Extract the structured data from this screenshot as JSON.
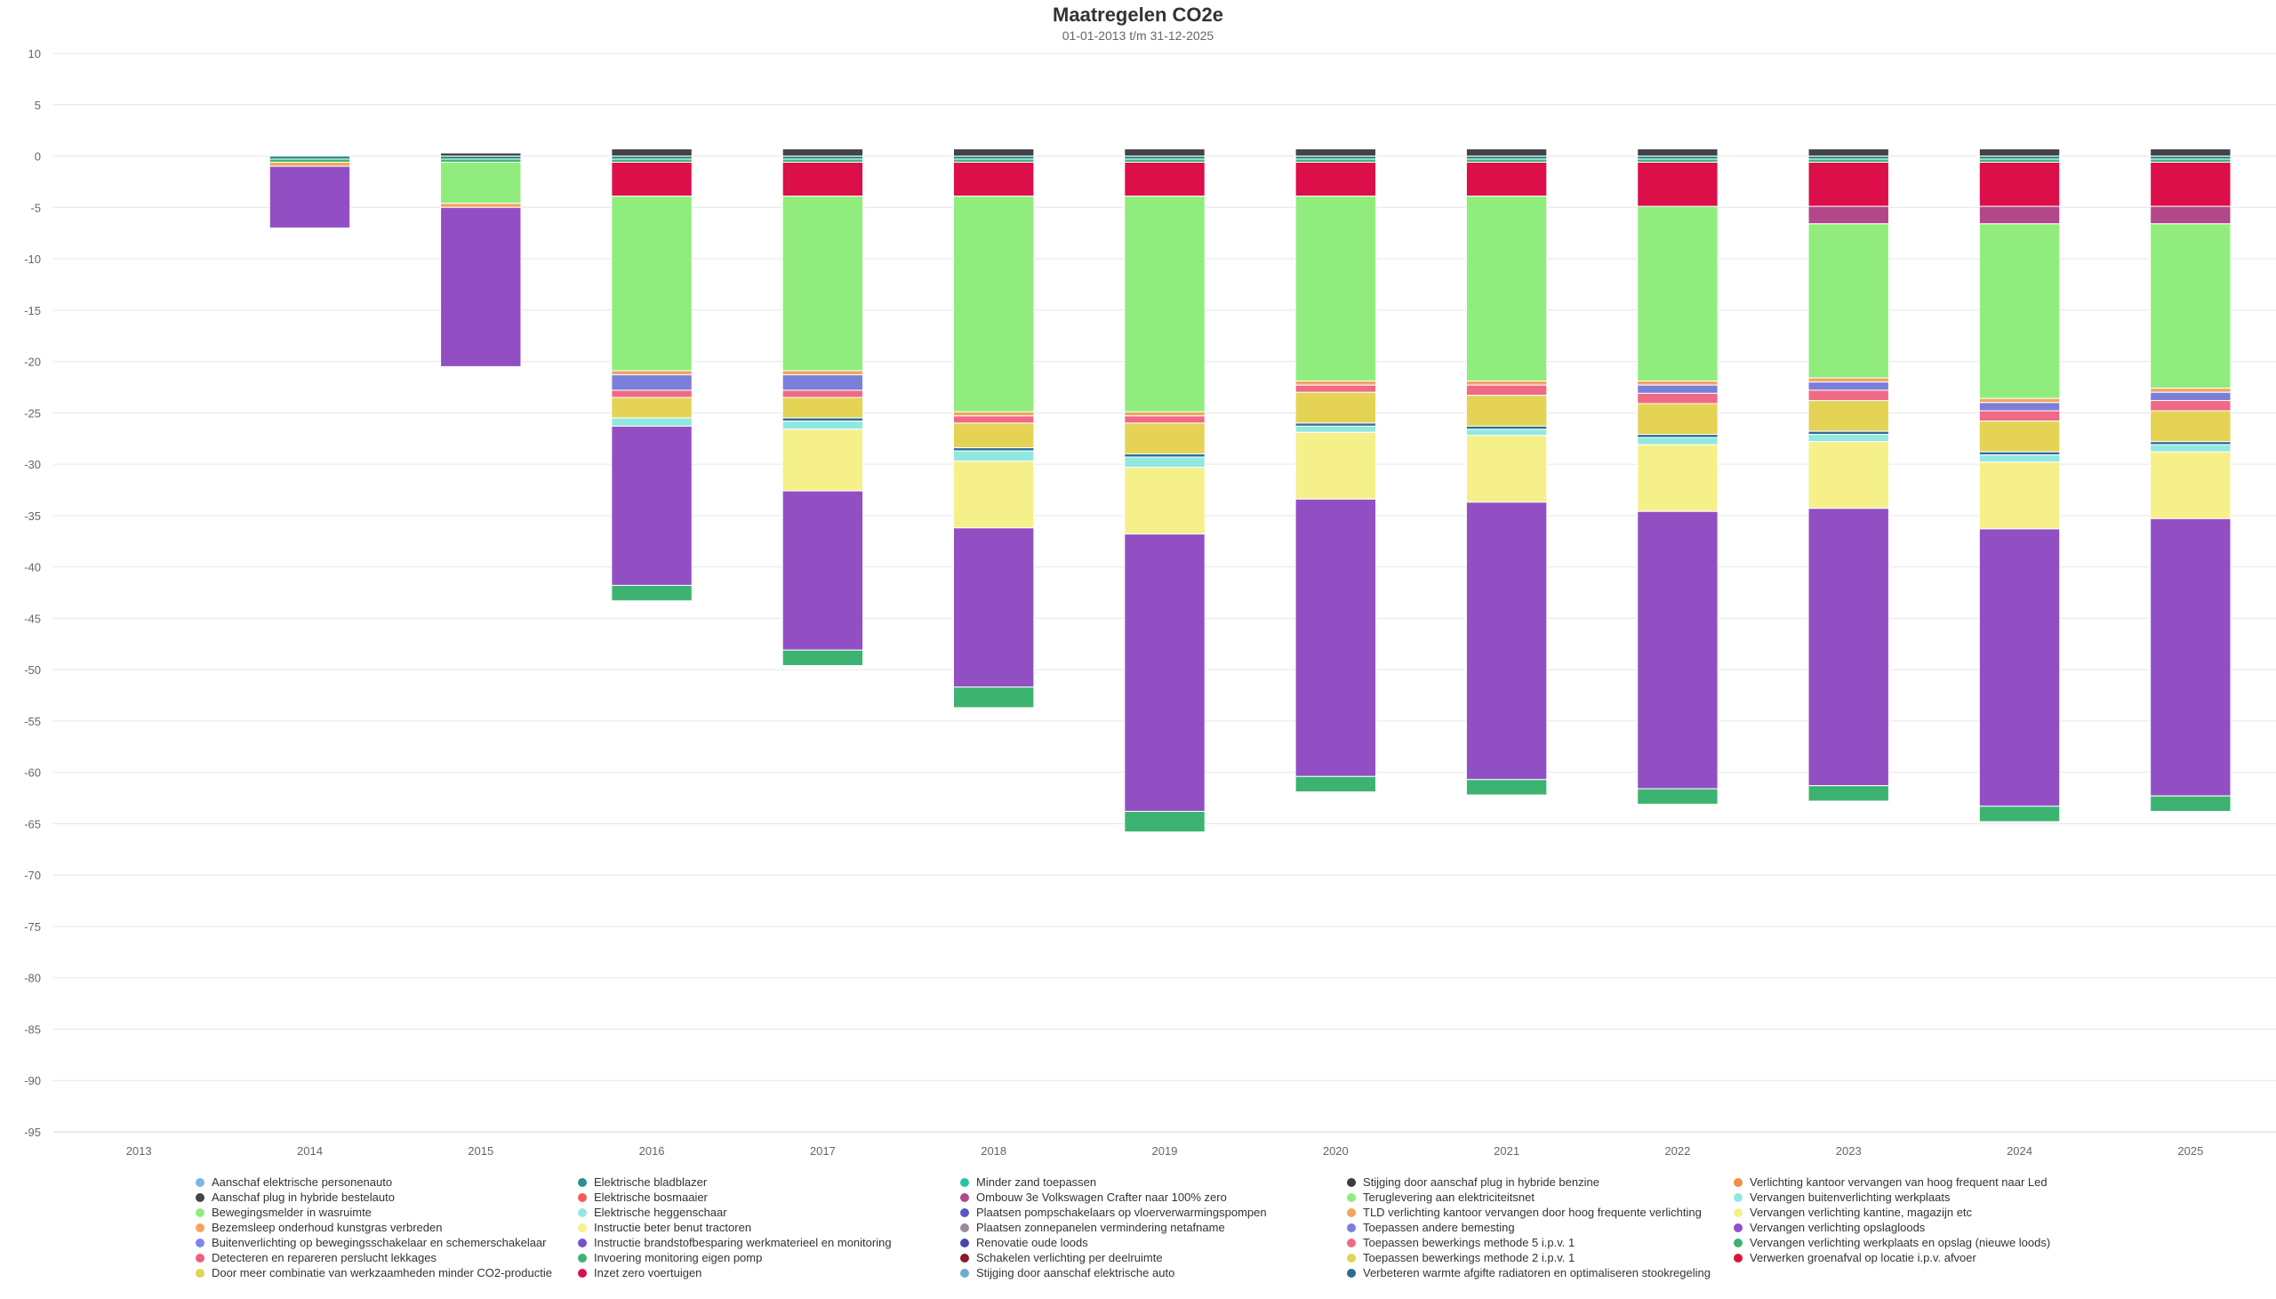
{
  "chart_data": {
    "type": "bar",
    "stacked": true,
    "title": "Maatregelen CO2e",
    "subtitle": "01-01-2013 t/m 31-12-2025",
    "ylim": [
      -95,
      10
    ],
    "yticks": [
      10,
      5,
      0,
      -5,
      -10,
      -15,
      -20,
      -25,
      -30,
      -35,
      -40,
      -45,
      -50,
      -55,
      -60,
      -65,
      -70,
      -75,
      -80,
      -85,
      -90,
      -95
    ],
    "categories": [
      "2013",
      "2014",
      "2015",
      "2016",
      "2017",
      "2018",
      "2019",
      "2020",
      "2021",
      "2022",
      "2023",
      "2024",
      "2025"
    ],
    "grid": true,
    "legend_position": "bottom",
    "series": [
      {
        "name": "Aanschaf elektrische personenauto",
        "color": "#7cb5ec",
        "values": [
          0,
          0,
          0,
          0,
          0,
          0,
          0,
          0,
          0,
          0,
          0,
          0,
          0
        ]
      },
      {
        "name": "Aanschaf plug in hybride bestelauto",
        "color": "#434348",
        "values": [
          0,
          0,
          0.3,
          0.7,
          0.7,
          0.7,
          0.7,
          0.7,
          0.7,
          0.7,
          0.7,
          0.7,
          0.7
        ]
      },
      {
        "name": "Bewegingsmelder in wasruimte",
        "color": "#90ed7d",
        "values": [
          0,
          0,
          0,
          0,
          0,
          0,
          0,
          0,
          0,
          0,
          0,
          0,
          0
        ]
      },
      {
        "name": "Bezemsleep onderhoud kunstgras verbreden",
        "color": "#f7a35c",
        "values": [
          0,
          0,
          0,
          0,
          0,
          0,
          0,
          0,
          0,
          0,
          0,
          0,
          0
        ]
      },
      {
        "name": "Buitenverlichting op bewegingsschakelaar en schemerschakelaar",
        "color": "#8085e9",
        "values": [
          0,
          0,
          0,
          0,
          0,
          0,
          0,
          0,
          0,
          0,
          0,
          0,
          0
        ]
      },
      {
        "name": "Detecteren en repareren perslucht lekkages",
        "color": "#f15c80",
        "values": [
          0,
          0,
          0,
          0,
          0,
          0,
          0,
          0,
          0,
          0,
          0,
          0,
          0
        ]
      },
      {
        "name": "Door meer combinatie van werkzaamheden minder CO2-productie",
        "color": "#e4d354",
        "values": [
          0,
          0,
          0,
          0,
          0,
          0,
          0,
          0,
          0,
          0,
          0,
          0,
          0
        ]
      },
      {
        "name": "Elektrische bladblazer",
        "color": "#2b908f",
        "values": [
          0,
          -0.3,
          -0.3,
          -0.3,
          -0.3,
          -0.3,
          -0.3,
          -0.3,
          -0.3,
          -0.3,
          -0.3,
          -0.3,
          -0.3
        ]
      },
      {
        "name": "Elektrische bosmaaier",
        "color": "#f45b5b",
        "values": [
          0,
          0,
          0,
          0,
          0,
          0,
          0,
          0,
          0,
          0,
          0,
          0,
          0
        ]
      },
      {
        "name": "Elektrische heggenschaar",
        "color": "#91e8e1",
        "values": [
          0,
          0,
          0,
          0,
          0,
          0,
          0,
          0,
          0,
          0,
          0,
          0,
          0
        ]
      },
      {
        "name": "Instructie beter benut tractoren",
        "color": "#f7f08d",
        "values": [
          0,
          0,
          0,
          0,
          0,
          0,
          0,
          0,
          0,
          0,
          0,
          0,
          0
        ]
      },
      {
        "name": "Instructie brandstofbesparing werkmaterieel en monitoring",
        "color": "#7a4fc9",
        "values": [
          0,
          0,
          0,
          0,
          0,
          0,
          0,
          0,
          0,
          0,
          0,
          0,
          0
        ]
      },
      {
        "name": "Invoering monitoring eigen pomp",
        "color": "#3cb371",
        "values": [
          0,
          -0.3,
          -0.3,
          -0.3,
          -0.3,
          -0.3,
          -0.3,
          -0.3,
          -0.3,
          -0.3,
          -0.3,
          -0.3,
          -0.3
        ]
      },
      {
        "name": "Inzet zero voertuigen",
        "color": "#dc0f4b",
        "values": [
          0,
          0,
          0,
          -3.3,
          -3.3,
          -3.3,
          -3.3,
          -3.3,
          -3.3,
          -4.3,
          -4.3,
          -4.3,
          -4.3
        ]
      },
      {
        "name": "Minder zand toepassen",
        "color": "#2fbfa5",
        "values": [
          0,
          0,
          0,
          0,
          0,
          0,
          0,
          0,
          0,
          0,
          0,
          0,
          0
        ]
      },
      {
        "name": "Ombouw 3e Volkswagen Crafter naar 100% zero",
        "color": "#b2478a",
        "values": [
          0,
          0,
          0,
          0,
          0,
          0,
          0,
          0,
          0,
          0,
          -1.7,
          -1.7,
          -1.7
        ]
      },
      {
        "name": "Plaatsen pompschakelaars op vloerverwarmingspompen",
        "color": "#5a55c8",
        "values": [
          0,
          0,
          0,
          0,
          0,
          0,
          0,
          0,
          0,
          0,
          0,
          0,
          0
        ]
      },
      {
        "name": "Plaatsen zonnepanelen vermindering netafname",
        "color": "#9a8a98",
        "values": [
          0,
          0,
          0,
          0,
          0,
          0,
          0,
          0,
          0,
          0,
          0,
          0,
          0
        ]
      },
      {
        "name": "Renovatie oude loods",
        "color": "#4845b0",
        "values": [
          0,
          0,
          0,
          0,
          0,
          0,
          0,
          0,
          0,
          0,
          0,
          0,
          0
        ]
      },
      {
        "name": "Schakelen verlichting per deelruimte",
        "color": "#8b1a2b",
        "values": [
          0,
          0,
          0,
          0,
          0,
          0,
          0,
          0,
          0,
          0,
          0,
          0,
          0
        ]
      },
      {
        "name": "Stijging door aanschaf elektrische auto",
        "color": "#6aaed6",
        "values": [
          0,
          0,
          0,
          0,
          0,
          0,
          0,
          0,
          0,
          0,
          0,
          0,
          0
        ]
      },
      {
        "name": "Stijging door aanschaf plug in hybride benzine",
        "color": "#3d3d40",
        "values": [
          0,
          0,
          0,
          0,
          0,
          0,
          0,
          0,
          0,
          0,
          0,
          0,
          0
        ]
      },
      {
        "name": "Teruglevering aan elektriciteitsnet",
        "color": "#90ed7d",
        "values": [
          0,
          0,
          -4,
          -17,
          -17,
          -21,
          -21,
          -18,
          -18,
          -17,
          -15,
          -17,
          -16
        ]
      },
      {
        "name": "TLD verlichting kantoor vervangen door hoog frequente verlichting",
        "color": "#f4a460",
        "values": [
          0,
          -0.4,
          -0.4,
          -0.4,
          -0.4,
          -0.4,
          -0.4,
          -0.4,
          -0.4,
          -0.4,
          -0.4,
          -0.4,
          -0.4
        ]
      },
      {
        "name": "Toepassen andere bemesting",
        "color": "#7b7fd9",
        "values": [
          0,
          0,
          0,
          -1.5,
          -1.5,
          0,
          0,
          0,
          0,
          -0.8,
          -0.8,
          -0.8,
          -0.8
        ]
      },
      {
        "name": "Toepassen bewerkings methode 5 i.p.v. 1",
        "color": "#f06a85",
        "values": [
          0,
          0,
          0,
          -0.7,
          -0.7,
          -0.7,
          -0.7,
          -0.7,
          -1.0,
          -1.0,
          -1.0,
          -1.0,
          -1.0
        ]
      },
      {
        "name": "Toepassen bewerkings methode 2 i.p.v. 1",
        "color": "#e4d354",
        "values": [
          0,
          0,
          0,
          -2,
          -2,
          -2.4,
          -3,
          -3,
          -3,
          -3,
          -3,
          -3,
          -3
        ]
      },
      {
        "name": "Verbeteren warmte afgifte radiatoren en optimaliseren stookregeling",
        "color": "#2b6f8f",
        "values": [
          0,
          0,
          0,
          0,
          -0.3,
          -0.3,
          -0.3,
          -0.3,
          -0.3,
          -0.3,
          -0.3,
          -0.3,
          -0.3
        ]
      },
      {
        "name": "Verlichting kantoor vervangen van hoog frequent naar Led",
        "color": "#f28f43",
        "values": [
          0,
          0,
          0,
          0,
          0,
          0,
          0,
          0,
          0,
          0,
          0,
          0,
          0
        ]
      },
      {
        "name": "Vervangen buitenverlichting werkplaats",
        "color": "#91e8e1",
        "values": [
          0,
          0,
          0,
          -0.8,
          -0.8,
          -1.0,
          -1.0,
          -0.6,
          -0.6,
          -0.7,
          -0.7,
          -0.7,
          -0.7
        ]
      },
      {
        "name": "Vervangen verlichting kantine, magazijn etc",
        "color": "#f5f08a",
        "values": [
          0,
          0,
          0,
          0,
          -6,
          -6.5,
          -6.5,
          -6.5,
          -6.5,
          -6.5,
          -6.5,
          -6.5,
          -6.5
        ]
      },
      {
        "name": "Vervangen verlichting opslagloods",
        "color": "#924fc4",
        "values": [
          0,
          -6,
          -15.5,
          -15.5,
          -15.5,
          -15.5,
          -27,
          -27,
          -27,
          -27,
          -27,
          -27,
          -27
        ]
      },
      {
        "name": "Vervangen verlichting werkplaats en opslag (nieuwe loods)",
        "color": "#3cb371",
        "values": [
          0,
          0,
          0,
          -1.5,
          -1.5,
          -2,
          -2,
          -1.5,
          -1.5,
          -1.5,
          -1.5,
          -1.5,
          -1.5
        ]
      },
      {
        "name": "Verwerken groenafval op locatie i.p.v. afvoer",
        "color": "#dc143c",
        "values": [
          0,
          0,
          0,
          0,
          0,
          0,
          0,
          0,
          0,
          0,
          0,
          0,
          0
        ]
      }
    ]
  }
}
